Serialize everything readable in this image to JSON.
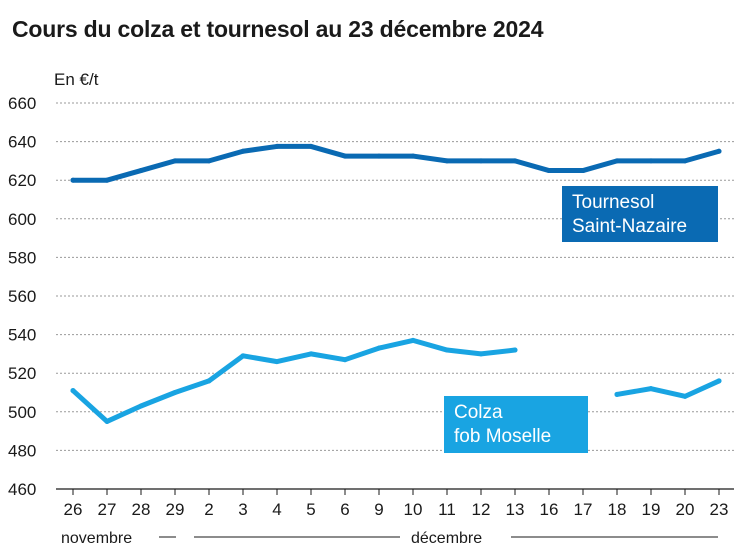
{
  "chart_data": {
    "type": "line",
    "title": "Cours du colza et tournesol au 23 décembre 2024",
    "ylabel": "En €/t",
    "ylim": [
      460,
      660
    ],
    "yticks": [
      460,
      480,
      500,
      520,
      540,
      560,
      580,
      600,
      620,
      640,
      660
    ],
    "categories": [
      "26",
      "27",
      "28",
      "29",
      "2",
      "3",
      "4",
      "5",
      "6",
      "9",
      "10",
      "11",
      "12",
      "13",
      "16",
      "17",
      "18",
      "19",
      "20",
      "23"
    ],
    "months": [
      "novembre",
      "décembre"
    ],
    "grid": true,
    "series": [
      {
        "name": "Tournesol Saint-Nazaire",
        "name_lines": [
          "Tournesol",
          "Saint-Nazaire"
        ],
        "color": "#0a6ab3",
        "values": [
          620,
          620,
          625,
          630,
          630,
          635,
          637.5,
          637.5,
          632.5,
          632.5,
          632.5,
          630,
          630,
          630,
          625,
          625,
          630,
          630,
          630,
          635
        ]
      },
      {
        "name": "Colza fob Moselle",
        "name_lines": [
          "Colza",
          "fob Moselle"
        ],
        "color": "#19a4e2",
        "values": [
          511,
          495,
          503,
          510,
          516,
          529,
          526,
          530,
          527,
          533,
          537,
          532,
          530,
          532,
          null,
          null,
          509,
          512,
          508,
          516
        ]
      }
    ]
  }
}
